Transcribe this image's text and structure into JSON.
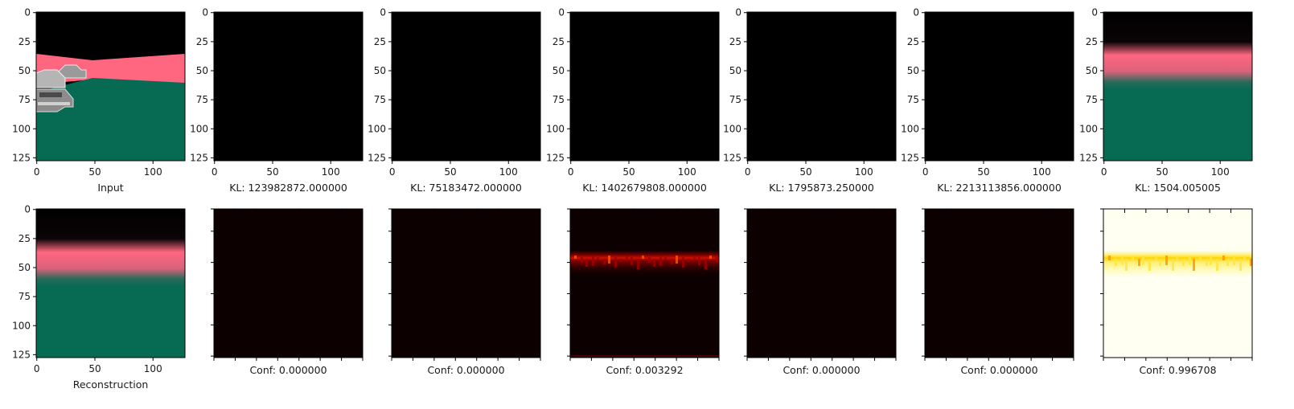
{
  "chart_data": {
    "type": "image-grid",
    "grid": {
      "rows": 2,
      "cols": 7
    },
    "pixel_axis": {
      "range": [
        0,
        127
      ],
      "ticks": [
        0,
        25,
        50,
        75,
        100,
        125
      ],
      "x_ticks": [
        0,
        50,
        100
      ]
    },
    "panels": [
      {
        "id": "input",
        "kind": "segmentation",
        "label": "Input",
        "show_ticks": true
      },
      {
        "id": "recon-1",
        "kind": "black",
        "label": "KL: 123982872.000000",
        "show_ticks": true
      },
      {
        "id": "recon-2",
        "kind": "black",
        "label": "KL: 75183472.000000",
        "show_ticks": true
      },
      {
        "id": "recon-3",
        "kind": "black",
        "label": "KL: 1402679808.000000",
        "show_ticks": true
      },
      {
        "id": "recon-4",
        "kind": "black",
        "label": "KL: 1795873.250000",
        "show_ticks": true
      },
      {
        "id": "recon-5",
        "kind": "black",
        "label": "KL: 2213113856.000000",
        "show_ticks": true
      },
      {
        "id": "recon-6",
        "kind": "blurry-seg",
        "label": "KL: 1504.005005",
        "show_ticks": true
      },
      {
        "id": "reconstruction",
        "kind": "blurry-seg",
        "label": "Reconstruction",
        "show_ticks": true
      },
      {
        "id": "conf-1",
        "kind": "heatmap",
        "label": "Conf: 0.000000",
        "value": 0.0,
        "show_ticks": false
      },
      {
        "id": "conf-2",
        "kind": "heatmap",
        "label": "Conf: 0.000000",
        "value": 0.0,
        "show_ticks": false
      },
      {
        "id": "conf-3",
        "kind": "heatmap",
        "label": "Conf: 0.003292",
        "value": 0.003292,
        "show_ticks": false
      },
      {
        "id": "conf-4",
        "kind": "heatmap",
        "label": "Conf: 0.000000",
        "value": 0.0,
        "show_ticks": false
      },
      {
        "id": "conf-5",
        "kind": "heatmap",
        "label": "Conf: 0.000000",
        "value": 0.0,
        "show_ticks": false
      },
      {
        "id": "conf-6",
        "kind": "heatmap",
        "label": "Conf: 0.996708",
        "value": 0.996708,
        "show_ticks": false
      }
    ],
    "colors": {
      "sky": "#000000",
      "road_band": "#ff6680",
      "ground": "#076a53",
      "heat_dark": "#0d0000",
      "heat_bright": "#fffff2",
      "heat_hot": "#ffd400"
    }
  }
}
